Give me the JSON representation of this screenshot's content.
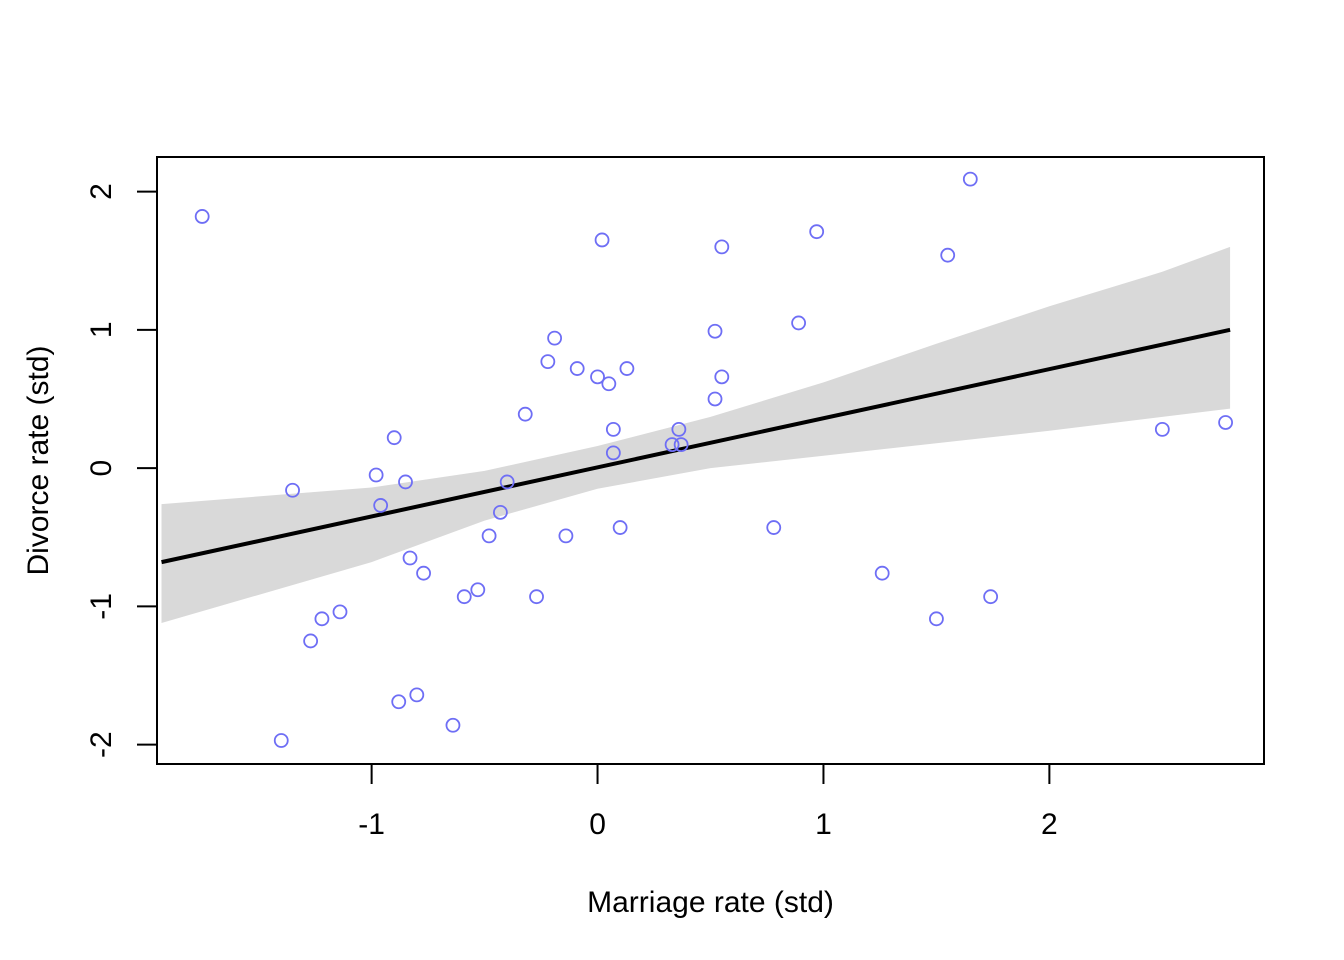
{
  "chart_data": {
    "type": "scatter",
    "title": "",
    "xlabel": "Marriage rate (std)",
    "ylabel": "Divorce rate (std)",
    "xlim": [
      -1.95,
      2.95
    ],
    "ylim": [
      -2.14,
      2.25
    ],
    "x_ticks": [
      -1,
      0,
      1,
      2
    ],
    "y_ticks": [
      -2,
      -1,
      0,
      1,
      2
    ],
    "x_tick_labels": [
      "-1",
      "0",
      "1",
      "2"
    ],
    "y_tick_labels": [
      "-2",
      "-1",
      "0",
      "1",
      "2"
    ],
    "grid": false,
    "colors": {
      "points": "#6e6ef5",
      "line": "#000000",
      "band": "#d9d9d9",
      "frame": "#000000"
    },
    "points": [
      {
        "x": -1.75,
        "y": 1.82
      },
      {
        "x": -1.4,
        "y": -1.97
      },
      {
        "x": -1.35,
        "y": -0.16
      },
      {
        "x": -1.27,
        "y": -1.25
      },
      {
        "x": -1.22,
        "y": -1.09
      },
      {
        "x": -1.14,
        "y": -1.04
      },
      {
        "x": -0.98,
        "y": -0.05
      },
      {
        "x": -0.96,
        "y": -0.27
      },
      {
        "x": -0.9,
        "y": 0.22
      },
      {
        "x": -0.88,
        "y": -1.69
      },
      {
        "x": -0.85,
        "y": -0.1
      },
      {
        "x": -0.83,
        "y": -0.65
      },
      {
        "x": -0.8,
        "y": -1.64
      },
      {
        "x": -0.77,
        "y": -0.76
      },
      {
        "x": -0.64,
        "y": -1.86
      },
      {
        "x": -0.59,
        "y": -0.93
      },
      {
        "x": -0.53,
        "y": -0.88
      },
      {
        "x": -0.48,
        "y": -0.49
      },
      {
        "x": -0.43,
        "y": -0.32
      },
      {
        "x": -0.4,
        "y": -0.1
      },
      {
        "x": -0.32,
        "y": 0.39
      },
      {
        "x": -0.27,
        "y": -0.93
      },
      {
        "x": -0.22,
        "y": 0.77
      },
      {
        "x": -0.19,
        "y": 0.94
      },
      {
        "x": -0.14,
        "y": -0.49
      },
      {
        "x": -0.09,
        "y": 0.72
      },
      {
        "x": 0.0,
        "y": 0.66
      },
      {
        "x": 0.02,
        "y": 1.65
      },
      {
        "x": 0.05,
        "y": 0.61
      },
      {
        "x": 0.07,
        "y": 0.28
      },
      {
        "x": 0.07,
        "y": 0.11
      },
      {
        "x": 0.1,
        "y": -0.43
      },
      {
        "x": 0.13,
        "y": 0.72
      },
      {
        "x": 0.33,
        "y": 0.17
      },
      {
        "x": 0.36,
        "y": 0.28
      },
      {
        "x": 0.37,
        "y": 0.17
      },
      {
        "x": 0.52,
        "y": 0.99
      },
      {
        "x": 0.52,
        "y": 0.5
      },
      {
        "x": 0.55,
        "y": 1.6
      },
      {
        "x": 0.55,
        "y": 0.66
      },
      {
        "x": 0.78,
        "y": -0.43
      },
      {
        "x": 0.89,
        "y": 1.05
      },
      {
        "x": 0.97,
        "y": 1.71
      },
      {
        "x": 1.26,
        "y": -0.76
      },
      {
        "x": 1.5,
        "y": -1.09
      },
      {
        "x": 1.55,
        "y": 1.54
      },
      {
        "x": 1.65,
        "y": 2.09
      },
      {
        "x": 1.74,
        "y": -0.93
      },
      {
        "x": 2.5,
        "y": 0.28
      },
      {
        "x": 2.78,
        "y": 0.33
      }
    ],
    "fit_line": {
      "x": [
        -1.93,
        2.8
      ],
      "y": [
        -0.68,
        1.0
      ]
    },
    "interval_band": {
      "x": [
        -1.93,
        -1.0,
        -0.5,
        0.0,
        0.5,
        1.0,
        1.5,
        2.0,
        2.5,
        2.8
      ],
      "upper": [
        -0.26,
        -0.14,
        -0.02,
        0.16,
        0.37,
        0.62,
        0.9,
        1.17,
        1.42,
        1.6
      ],
      "lower": [
        -1.12,
        -0.68,
        -0.38,
        -0.15,
        0.0,
        0.09,
        0.18,
        0.27,
        0.37,
        0.43
      ]
    }
  }
}
